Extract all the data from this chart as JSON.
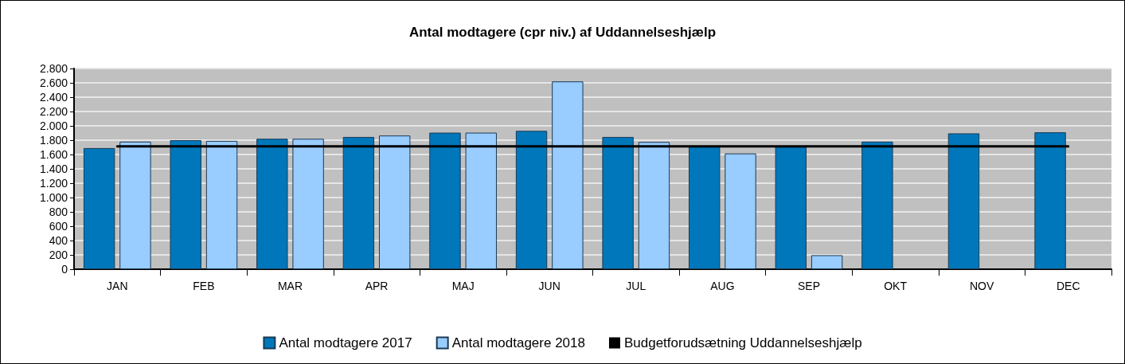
{
  "chart_data": {
    "type": "bar",
    "title": "Antal modtagere (cpr niv.) af Uddannelseshjælp",
    "categories": [
      "JAN",
      "FEB",
      "MAR",
      "APR",
      "MAJ",
      "JUN",
      "JUL",
      "AUG",
      "SEP",
      "OKT",
      "NOV",
      "DEC"
    ],
    "series": [
      {
        "name": "Antal modtagere 2017",
        "color": "#0077bb",
        "values": [
          1690,
          1800,
          1820,
          1845,
          1905,
          1930,
          1845,
          1710,
          1710,
          1780,
          1895,
          1910
        ]
      },
      {
        "name": "Antal modtagere 2018",
        "color": "#99ccff",
        "values": [
          1780,
          1790,
          1820,
          1865,
          1905,
          2620,
          1775,
          1615,
          195,
          null,
          null,
          null
        ]
      },
      {
        "name": "Budgetforudsætning Uddannelseshjælp",
        "type": "line",
        "color": "#000000",
        "marker": "none",
        "line_style": "solid",
        "values": [
          1715,
          1715,
          1715,
          1715,
          1715,
          1715,
          1715,
          1715,
          1715,
          1715,
          1715,
          1715
        ]
      }
    ],
    "ylim": [
      0,
      2800
    ],
    "yticks": [
      0,
      200,
      400,
      600,
      800,
      {
        "value": 1000,
        "label": "1.000"
      },
      {
        "value": 1200,
        "label": "1.200"
      },
      {
        "value": 1400,
        "label": "1.400"
      },
      {
        "value": 1600,
        "label": "1.600"
      },
      {
        "value": 1800,
        "label": "1.800"
      },
      {
        "value": 2000,
        "label": "2.000"
      },
      {
        "value": 2200,
        "label": "2.200"
      },
      {
        "value": 2400,
        "label": "2.400"
      },
      {
        "value": 2600,
        "label": "2.600"
      },
      {
        "value": 2800,
        "label": "2.800"
      }
    ],
    "grid": "y",
    "legend": "bottom"
  }
}
